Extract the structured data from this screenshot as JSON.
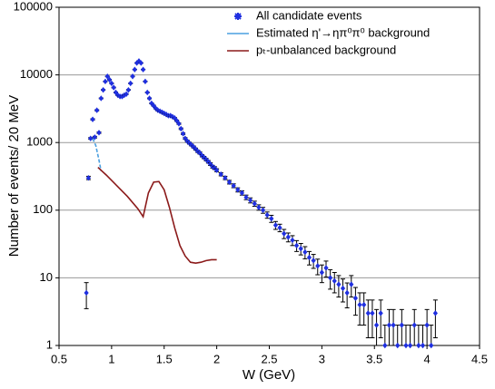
{
  "chart_data": {
    "type": "scatter",
    "xlabel": "W (GeV)",
    "ylabel": "Number of events/ 20 MeV",
    "xlim": [
      0.5,
      4.5
    ],
    "xticks": [
      0.5,
      1,
      1.5,
      2,
      2.5,
      3,
      3.5,
      4,
      4.5
    ],
    "ylim": [
      1,
      100000
    ],
    "yticks": [
      1,
      10,
      100,
      1000,
      10000,
      100000
    ],
    "ylog": true,
    "grid": true,
    "legend": "upper right",
    "series": [
      {
        "name": "All candidate events",
        "color": "#1f2fe0",
        "error_color": "#000000",
        "x": [
          0.76,
          0.78,
          0.8,
          0.82,
          0.84,
          0.86,
          0.88,
          0.9,
          0.92,
          0.94,
          0.96,
          0.98,
          1.0,
          1.02,
          1.04,
          1.06,
          1.08,
          1.1,
          1.12,
          1.14,
          1.16,
          1.18,
          1.2,
          1.22,
          1.24,
          1.26,
          1.28,
          1.3,
          1.32,
          1.34,
          1.36,
          1.38,
          1.4,
          1.42,
          1.44,
          1.46,
          1.48,
          1.5,
          1.52,
          1.54,
          1.56,
          1.58,
          1.6,
          1.62,
          1.64,
          1.66,
          1.68,
          1.7,
          1.72,
          1.74,
          1.76,
          1.78,
          1.8,
          1.82,
          1.84,
          1.86,
          1.88,
          1.9,
          1.92,
          1.94,
          1.96,
          1.98,
          2.0,
          2.04,
          2.08,
          2.12,
          2.16,
          2.2,
          2.24,
          2.28,
          2.32,
          2.36,
          2.4,
          2.44,
          2.48,
          2.52,
          2.56,
          2.6,
          2.64,
          2.68,
          2.72,
          2.76,
          2.8,
          2.84,
          2.88,
          2.92,
          2.96,
          3.0,
          3.04,
          3.08,
          3.12,
          3.16,
          3.2,
          3.24,
          3.28,
          3.32,
          3.36,
          3.4,
          3.44,
          3.48,
          3.52,
          3.56,
          3.6,
          3.64,
          3.68,
          3.72,
          3.76,
          3.8,
          3.84,
          3.88,
          3.92,
          3.96,
          4.0,
          4.04,
          4.08
        ],
        "values": [
          6,
          300,
          1150,
          2200,
          1200,
          3000,
          1400,
          4500,
          6000,
          8000,
          9500,
          8500,
          7500,
          6500,
          5500,
          5000,
          4800,
          4800,
          5000,
          5200,
          6000,
          7500,
          9500,
          12000,
          15000,
          16000,
          15000,
          12000,
          8000,
          5500,
          4500,
          3800,
          3500,
          3200,
          3000,
          2900,
          2800,
          2700,
          2600,
          2500,
          2500,
          2400,
          2300,
          2100,
          1900,
          1600,
          1350,
          1150,
          1050,
          980,
          920,
          860,
          800,
          740,
          700,
          640,
          600,
          560,
          520,
          480,
          440,
          420,
          390,
          340,
          300,
          260,
          230,
          200,
          180,
          155,
          140,
          125,
          110,
          100,
          85,
          75,
          60,
          55,
          45,
          40,
          36,
          30,
          27,
          24,
          20,
          18,
          15,
          12,
          14,
          10,
          9,
          8,
          7,
          6,
          8,
          5,
          4,
          4,
          3,
          3,
          2,
          3,
          1,
          2,
          2,
          1,
          2,
          1,
          1,
          2,
          1,
          1,
          2,
          1,
          3
        ],
        "errors": [
          2.5,
          17,
          34,
          47,
          35,
          55,
          37,
          67,
          77,
          89,
          97,
          92,
          87,
          81,
          74,
          71,
          69,
          69,
          71,
          72,
          77,
          87,
          97,
          110,
          122,
          126,
          122,
          110,
          89,
          74,
          67,
          62,
          59,
          57,
          55,
          54,
          53,
          52,
          51,
          50,
          50,
          49,
          48,
          46,
          44,
          40,
          37,
          34,
          32,
          31,
          30,
          29,
          28,
          27,
          26,
          25,
          24,
          24,
          23,
          22,
          21,
          20,
          20,
          18,
          17,
          16,
          15,
          14,
          13,
          12,
          12,
          11,
          10,
          10,
          9,
          9,
          8,
          7,
          7,
          6,
          6,
          5.5,
          5.2,
          4.9,
          4.5,
          4.2,
          3.9,
          3.5,
          3.7,
          3.2,
          3,
          2.8,
          2.6,
          2.4,
          2.8,
          2.2,
          2,
          2,
          1.7,
          1.7,
          1.4,
          1.7,
          1,
          1.4,
          1.4,
          1,
          1.4,
          1,
          1,
          1.4,
          1,
          1,
          1.4,
          1,
          1.7
        ]
      },
      {
        "name": "Estimated η'→ηπ⁰π⁰ background",
        "kind": "line",
        "dashed": true,
        "color": "#4a9fe0",
        "x": [
          0.82,
          0.85,
          0.88,
          0.9
        ],
        "values": [
          1150,
          900,
          550,
          380
        ]
      },
      {
        "name": "pₜ-unbalanced background",
        "kind": "line",
        "color": "#8b1a1a",
        "x": [
          0.87,
          0.95,
          1.05,
          1.15,
          1.25,
          1.3,
          1.35,
          1.4,
          1.45,
          1.5,
          1.55,
          1.6,
          1.65,
          1.7,
          1.75,
          1.8,
          1.85,
          1.9,
          1.95,
          2.0
        ],
        "values": [
          430,
          330,
          230,
          160,
          105,
          80,
          180,
          260,
          265,
          200,
          110,
          55,
          30,
          21,
          17,
          16.5,
          17,
          18,
          18.5,
          18.5
        ]
      }
    ]
  }
}
